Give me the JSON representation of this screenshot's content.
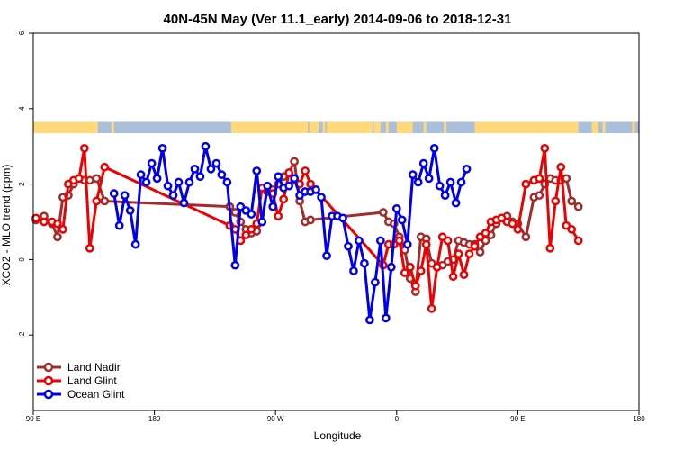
{
  "chart_data": {
    "type": "line",
    "title": "40N-45N May (Ver 11.1_early)   2014-09-06 to 2018-12-31",
    "xlabel": "Longitude",
    "ylabel": "XCO2 - MLO trend (ppm)",
    "xlim": [
      0,
      360
    ],
    "ylim": [
      -4,
      6
    ],
    "x_ticks": [
      {
        "value": 0,
        "label": "90 E"
      },
      {
        "value": 90,
        "label": "180"
      },
      {
        "value": 180,
        "label": "90 W"
      },
      {
        "value": 270,
        "label": "0"
      },
      {
        "value": 360,
        "label": "90 E"
      },
      {
        "value": 450,
        "label": "180"
      }
    ],
    "x_display_range": [
      0,
      450
    ],
    "y_ticks": [
      -2,
      0,
      2,
      4,
      6
    ],
    "grid": false,
    "legend_position": "bottom-left",
    "land_ocean_band": {
      "y_range": [
        3.35,
        3.65
      ],
      "ocean_color": "#a9bfdc",
      "land_color": "#ffd97a",
      "land_segments": [
        [
          0,
          48
        ],
        [
          58,
          60
        ],
        [
          147,
          204
        ],
        [
          205,
          212
        ],
        [
          215,
          217
        ],
        [
          218,
          252
        ],
        [
          253,
          258
        ],
        [
          262,
          264
        ],
        [
          270,
          282
        ],
        [
          290,
          292
        ],
        [
          305,
          307
        ],
        [
          328,
          405
        ],
        [
          415,
          420
        ],
        [
          423,
          425
        ],
        [
          445,
          447
        ]
      ]
    },
    "series": [
      {
        "name": "Land Nadir",
        "color": "#a52a2a",
        "x": [
          2,
          8,
          14,
          18,
          22,
          26,
          30,
          34,
          38,
          42,
          47,
          53,
          146,
          150,
          154,
          158,
          162,
          166,
          170,
          174,
          178,
          182,
          186,
          190,
          194,
          198,
          202,
          206,
          260,
          264,
          268,
          272,
          276,
          280,
          284,
          288,
          292,
          296,
          300,
          304,
          308,
          312,
          316,
          320,
          324,
          328,
          332,
          336,
          340,
          344,
          348,
          352,
          356,
          360,
          366,
          372,
          376,
          380,
          384,
          388,
          392,
          396,
          400,
          405
        ],
        "y": [
          1.05,
          1.15,
          0.95,
          0.6,
          1.65,
          1.7,
          2.0,
          2.15,
          2.1,
          2.1,
          2.15,
          1.55,
          1.4,
          1.25,
          1.0,
          0.8,
          0.7,
          0.75,
          1.0,
          1.9,
          1.85,
          2.0,
          2.2,
          2.3,
          2.6,
          1.55,
          1.0,
          1.05,
          1.25,
          1.0,
          0.95,
          0.6,
          0.25,
          -0.5,
          -0.85,
          0.6,
          0.55,
          -0.1,
          -0.2,
          -0.15,
          -0.05,
          0.0,
          0.5,
          0.45,
          0.4,
          0.4,
          0.2,
          0.5,
          0.65,
          0.95,
          1.1,
          1.15,
          1.0,
          0.95,
          0.6,
          1.65,
          1.7,
          2.0,
          2.15,
          2.1,
          2.1,
          2.15,
          1.55,
          1.4
        ]
      },
      {
        "name": "Land Glint",
        "color": "#ee0000",
        "x": [
          2,
          8,
          14,
          18,
          22,
          26,
          30,
          34,
          38,
          42,
          47,
          53,
          146,
          150,
          154,
          158,
          162,
          166,
          170,
          174,
          178,
          182,
          186,
          190,
          194,
          198,
          202,
          206,
          260,
          264,
          268,
          272,
          276,
          280,
          284,
          288,
          292,
          296,
          300,
          304,
          308,
          312,
          316,
          320,
          324,
          328,
          332,
          336,
          340,
          344,
          348,
          352,
          356,
          360,
          366,
          372,
          376,
          380,
          384,
          388,
          392,
          396,
          400,
          405
        ],
        "y": [
          1.1,
          1.0,
          1.0,
          0.95,
          0.8,
          2.0,
          2.1,
          2.15,
          2.95,
          0.3,
          1.55,
          2.45,
          0.9,
          0.8,
          0.5,
          0.65,
          0.8,
          0.95,
          1.9,
          1.8,
          1.75,
          1.15,
          1.6,
          2.3,
          2.1,
          2.0,
          2.35,
          2.0,
          -0.15,
          0.4,
          0.4,
          0.5,
          -0.35,
          -0.2,
          -0.7,
          -0.3,
          0.4,
          -1.3,
          -0.2,
          0.6,
          0.5,
          -0.45,
          0.15,
          -0.4,
          0.15,
          0.35,
          0.6,
          0.7,
          1.0,
          1.05,
          1.1,
          1.0,
          0.95,
          0.8,
          2.0,
          2.1,
          2.15,
          2.95,
          0.3,
          1.55,
          2.45,
          0.9,
          0.8,
          0.5
        ]
      },
      {
        "name": "Ocean Glint",
        "color": "#0000ee",
        "x": [
          60,
          64,
          68,
          72,
          76,
          80,
          84,
          88,
          92,
          96,
          100,
          104,
          108,
          112,
          116,
          120,
          124,
          128,
          132,
          136,
          140,
          144,
          150,
          154,
          158,
          162,
          166,
          170,
          174,
          178,
          182,
          186,
          190,
          194,
          198,
          202,
          206,
          210,
          214,
          218,
          222,
          226,
          230,
          234,
          238,
          242,
          246,
          250,
          254,
          258,
          262,
          266,
          270,
          274,
          278,
          282,
          286,
          290,
          294,
          298,
          302,
          306,
          310,
          314,
          318,
          322
        ],
        "y": [
          1.75,
          0.9,
          1.7,
          1.3,
          0.4,
          2.25,
          2.05,
          2.55,
          2.15,
          2.95,
          1.95,
          1.7,
          2.05,
          1.5,
          2.05,
          2.4,
          2.2,
          3.0,
          2.4,
          2.55,
          2.25,
          2.05,
          -0.15,
          1.4,
          1.3,
          1.2,
          2.35,
          1.0,
          1.95,
          1.4,
          2.2,
          1.9,
          1.95,
          2.15,
          1.7,
          1.8,
          1.8,
          1.85,
          1.65,
          0.1,
          1.15,
          1.15,
          1.1,
          0.35,
          -0.3,
          0.5,
          -0.1,
          -1.6,
          -0.6,
          0.5,
          -1.55,
          -0.2,
          1.35,
          1.05,
          0.4,
          2.25,
          2.05,
          2.55,
          2.15,
          2.95,
          1.95,
          1.7,
          2.05,
          1.5,
          2.05,
          2.4
        ]
      }
    ]
  }
}
